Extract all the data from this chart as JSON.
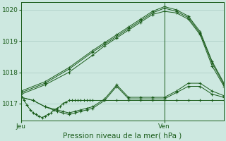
{
  "title": "",
  "xlabel": "Pression niveau de la mer( hPa )",
  "bg_color": "#cde8e0",
  "grid_color": "#aaccc4",
  "line_color": "#1a5c1a",
  "ylim": [
    1016.45,
    1020.25
  ],
  "yticks": [
    1017,
    1018,
    1019,
    1020
  ],
  "xlim": [
    0,
    34
  ],
  "x_jeu": 0,
  "x_ven": 24,
  "series": [
    {
      "x": [
        0,
        0.5,
        1,
        1.5,
        2,
        2.5,
        3,
        3.5,
        4,
        4.5,
        5,
        5.5,
        6,
        6.5,
        7,
        7.5,
        8,
        8.5,
        9,
        9.5,
        10,
        10.5,
        11,
        11.5,
        12,
        14,
        16,
        18,
        20,
        22,
        24,
        26,
        28,
        30,
        32,
        34
      ],
      "y": [
        1017.25,
        1017.1,
        1016.95,
        1016.8,
        1016.7,
        1016.65,
        1016.6,
        1016.55,
        1016.6,
        1016.65,
        1016.7,
        1016.8,
        1016.85,
        1016.9,
        1017.0,
        1017.05,
        1017.1,
        1017.1,
        1017.1,
        1017.1,
        1017.1,
        1017.1,
        1017.1,
        1017.1,
        1017.1,
        1017.1,
        1017.1,
        1017.1,
        1017.1,
        1017.1,
        1017.1,
        1017.1,
        1017.1,
        1017.1,
        1017.1,
        1017.1
      ]
    },
    {
      "x": [
        0,
        2,
        4,
        6,
        7,
        8,
        9,
        10,
        11,
        12,
        14,
        16,
        18,
        20,
        22,
        24,
        26,
        28,
        30,
        32,
        34
      ],
      "y": [
        1017.2,
        1017.1,
        1016.9,
        1016.75,
        1016.7,
        1016.65,
        1016.7,
        1016.75,
        1016.8,
        1016.85,
        1017.1,
        1017.55,
        1017.15,
        1017.15,
        1017.15,
        1017.15,
        1017.35,
        1017.55,
        1017.55,
        1017.3,
        1017.2
      ]
    },
    {
      "x": [
        0,
        4,
        8,
        12,
        14,
        16,
        18,
        20,
        22,
        24,
        26,
        28,
        30,
        32,
        34
      ],
      "y": [
        1017.3,
        1017.6,
        1018.0,
        1018.55,
        1018.85,
        1019.1,
        1019.35,
        1019.6,
        1019.85,
        1019.95,
        1019.9,
        1019.7,
        1019.2,
        1018.2,
        1017.55
      ]
    },
    {
      "x": [
        0,
        4,
        8,
        12,
        14,
        16,
        18,
        20,
        22,
        24,
        26,
        28,
        30,
        32,
        34
      ],
      "y": [
        1017.35,
        1017.65,
        1018.1,
        1018.65,
        1018.9,
        1019.15,
        1019.4,
        1019.65,
        1019.9,
        1020.05,
        1019.95,
        1019.75,
        1019.25,
        1018.3,
        1017.6
      ]
    },
    {
      "x": [
        0,
        4,
        8,
        12,
        14,
        16,
        18,
        20,
        22,
        24,
        26,
        28,
        30,
        32,
        34
      ],
      "y": [
        1017.4,
        1017.7,
        1018.15,
        1018.7,
        1018.95,
        1019.2,
        1019.45,
        1019.7,
        1019.95,
        1020.1,
        1020.0,
        1019.8,
        1019.3,
        1018.35,
        1017.65
      ]
    },
    {
      "x": [
        0,
        2,
        4,
        6,
        7,
        8,
        9,
        10,
        11,
        12,
        14,
        16,
        18,
        20,
        22,
        24,
        26,
        28,
        30,
        32,
        34
      ],
      "y": [
        1017.2,
        1017.1,
        1016.9,
        1016.8,
        1016.75,
        1016.7,
        1016.75,
        1016.8,
        1016.85,
        1016.9,
        1017.15,
        1017.6,
        1017.2,
        1017.2,
        1017.2,
        1017.2,
        1017.4,
        1017.65,
        1017.65,
        1017.4,
        1017.25
      ]
    }
  ]
}
